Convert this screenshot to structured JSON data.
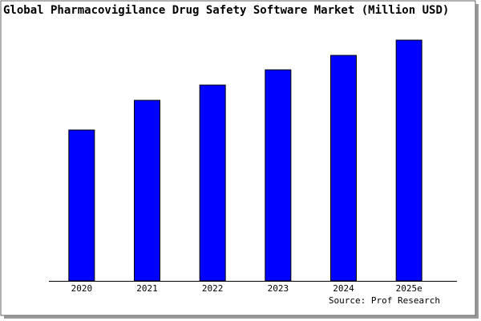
{
  "chart_data": {
    "type": "bar",
    "title": "Global Pharmacovigilance Drug Safety Software Market (Million USD)",
    "categories": [
      "2020",
      "2021",
      "2022",
      "2023",
      "2024",
      "2025e"
    ],
    "values": [
      188,
      225,
      244,
      263,
      281,
      300
    ],
    "color": "#0000ff",
    "ylim": [
      0,
      305
    ],
    "source": "Source: Prof Research"
  }
}
